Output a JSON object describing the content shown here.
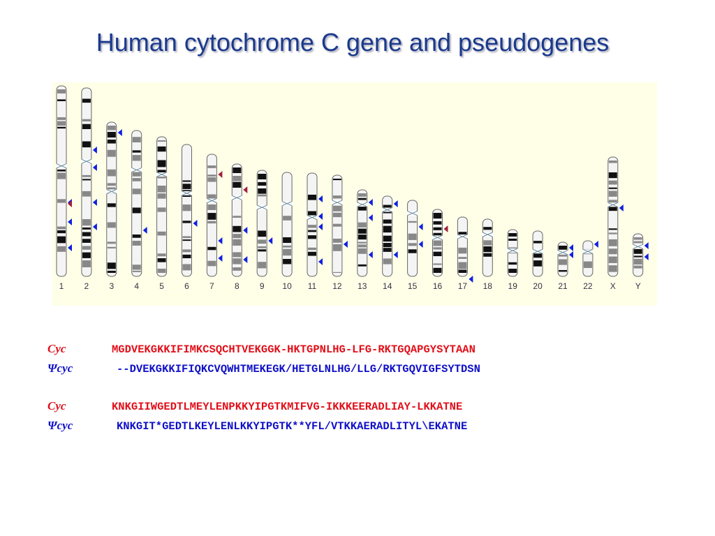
{
  "title": "Human cytochrome C gene and pseudogenes",
  "karyotype": {
    "chromosomes": [
      "1",
      "2",
      "3",
      "4",
      "5",
      "6",
      "7",
      "8",
      "9",
      "10",
      "11",
      "12",
      "13",
      "14",
      "15",
      "16",
      "17",
      "18",
      "19",
      "20",
      "21",
      "22",
      "X",
      "Y"
    ]
  },
  "alignment": [
    {
      "rows": [
        {
          "label": "Cyc",
          "sequence": "MGDVEKGKKIFIMKCSQCHTVEKGGK-HKTGPNLHG-LFG-RKTGQAPGYSYTAAN"
        },
        {
          "label": "Ψcyc",
          "sequence": "--DVEKGKKIFIQKCVQWHTMEKEGK/HETGLNLHG/LLG/RKTGQVIGFSYTDSN"
        }
      ]
    },
    {
      "rows": [
        {
          "label": "Cyc",
          "sequence": "KNKGIIWGEDTLMEYLENPKKYIPGTKMIFVG-IKKKEERADLIAY-LKKATNE"
        },
        {
          "label": "Ψcyc",
          "sequence": "KNKGIT*GEDTLKEYLENLKKYIPGTK**YFL/VTKKAERADLITYL\\EKATNE"
        }
      ]
    }
  ]
}
